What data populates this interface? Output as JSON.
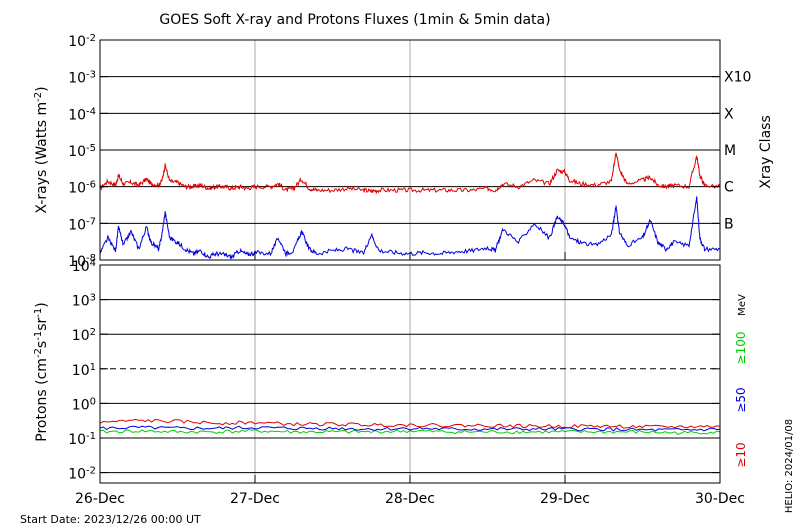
{
  "chart_data": {
    "type": "line",
    "title": "GOES Soft X-ray and Protons Fluxes   (1min & 5min data)",
    "x_ticks": [
      "26-Dec",
      "27-Dec",
      "28-Dec",
      "29-Dec",
      "30-Dec"
    ],
    "footer": {
      "start_date": "Start Date: 2023/12/26 00:00 UT",
      "credit": "HELIO: 2024/01/08"
    },
    "panels": [
      {
        "name": "xray",
        "ylabel": "X-rays (Watts m",
        "ylabel_sup": "-2",
        "ylabel_close": ")",
        "y_scale": "log",
        "ylim": [
          1e-08,
          0.01
        ],
        "y_tick_exponents": [
          "-8",
          "-7",
          "-6",
          "-5",
          "-4",
          "-3",
          "-2"
        ],
        "right_axis_title": "Xray Class",
        "classes": [
          {
            "label": "X10",
            "level": 0.001
          },
          {
            "label": "X",
            "level": 0.0001
          },
          {
            "label": "M",
            "level": 1e-05
          },
          {
            "label": "C",
            "level": 1e-06
          },
          {
            "label": "B",
            "level": 1e-07
          }
        ],
        "series": [
          {
            "color": "#dd0000",
            "x": [
              0,
              0.05,
              0.1,
              0.12,
              0.15,
              0.2,
              0.25,
              0.3,
              0.33,
              0.38,
              0.4,
              0.42,
              0.45,
              0.5,
              0.55,
              0.6,
              0.65,
              0.7,
              0.75,
              0.8,
              0.85,
              0.9,
              0.95,
              1.0,
              1.1,
              1.15,
              1.2,
              1.25,
              1.3,
              1.35,
              1.4,
              1.5,
              1.6,
              1.7,
              1.75,
              1.8,
              1.9,
              2.0,
              2.1,
              2.2,
              2.3,
              2.4,
              2.5,
              2.55,
              2.6,
              2.7,
              2.8,
              2.9,
              2.95,
              3.0,
              3.03,
              3.1,
              3.2,
              3.3,
              3.33,
              3.35,
              3.4,
              3.5,
              3.55,
              3.6,
              3.65,
              3.7,
              3.8,
              3.85,
              3.87,
              3.9,
              4.0
            ],
            "y": [
              9e-07,
              1.4e-06,
              1.1e-06,
              2e-06,
              1.2e-06,
              1.3e-06,
              1.1e-06,
              1.6e-06,
              1.2e-06,
              1.1e-06,
              1.5e-06,
              3.8e-06,
              1.4e-06,
              1.3e-06,
              1e-06,
              1e-06,
              1.1e-06,
              9e-07,
              1e-06,
              1e-06,
              9e-07,
              1e-06,
              9e-07,
              1e-06,
              1e-06,
              1.2e-06,
              8e-07,
              9e-07,
              1.6e-06,
              9e-07,
              8e-07,
              8e-07,
              9e-07,
              8e-07,
              7.5e-07,
              8e-07,
              8e-07,
              8e-07,
              8e-07,
              8e-07,
              8e-07,
              8e-07,
              9e-07,
              8e-07,
              1.2e-06,
              1e-06,
              1.5e-06,
              1.2e-06,
              2.8e-06,
              2.5e-06,
              1.5e-06,
              1.2e-06,
              1.1e-06,
              1.4e-06,
              9e-06,
              3e-06,
              1.2e-06,
              1.5e-06,
              1.8e-06,
              1.1e-06,
              1e-06,
              1.1e-06,
              1e-06,
              7e-06,
              2e-06,
              1.1e-06,
              1e-06
            ]
          },
          {
            "color": "#0000dd",
            "x": [
              0,
              0.05,
              0.1,
              0.12,
              0.15,
              0.2,
              0.25,
              0.3,
              0.33,
              0.38,
              0.4,
              0.42,
              0.45,
              0.5,
              0.55,
              0.6,
              0.65,
              0.7,
              0.75,
              0.8,
              0.85,
              0.9,
              0.95,
              1.0,
              1.1,
              1.15,
              1.2,
              1.25,
              1.3,
              1.35,
              1.4,
              1.5,
              1.6,
              1.7,
              1.75,
              1.8,
              1.9,
              2.0,
              2.1,
              2.2,
              2.3,
              2.4,
              2.5,
              2.55,
              2.6,
              2.7,
              2.8,
              2.9,
              2.95,
              3.0,
              3.03,
              3.1,
              3.2,
              3.3,
              3.33,
              3.35,
              3.4,
              3.5,
              3.55,
              3.6,
              3.65,
              3.7,
              3.8,
              3.85,
              3.87,
              3.9,
              4.0
            ],
            "y": [
              1.5e-08,
              4e-08,
              1.8e-08,
              8e-08,
              2.5e-08,
              6e-08,
              2e-08,
              8e-08,
              3e-08,
              2e-08,
              5e-08,
              2e-07,
              4e-08,
              3e-08,
              2e-08,
              1.5e-08,
              1.8e-08,
              1.2e-08,
              1.5e-08,
              1.4e-08,
              1.2e-08,
              1.8e-08,
              1.4e-08,
              1.6e-08,
              1.5e-08,
              4e-08,
              1.5e-08,
              1.8e-08,
              6e-08,
              2e-08,
              1.5e-08,
              1.8e-08,
              2e-08,
              1.5e-08,
              5e-08,
              1.8e-08,
              1.6e-08,
              1.5e-08,
              1.6e-08,
              1.5e-08,
              1.7e-08,
              1.8e-08,
              2.2e-08,
              1.8e-08,
              7e-08,
              3e-08,
              1e-07,
              4e-08,
              1.5e-07,
              9e-08,
              4e-08,
              3e-08,
              2.5e-08,
              5e-08,
              3e-07,
              6e-08,
              2.5e-08,
              4e-08,
              1.2e-07,
              3e-08,
              2e-08,
              3e-08,
              2.5e-08,
              5e-07,
              4e-08,
              2e-08,
              2e-08
            ]
          }
        ]
      },
      {
        "name": "protons",
        "ylabel": "Protons (cm",
        "ylabel_sup1": "-2",
        "ylabel_mid": "s",
        "ylabel_sup2": "-1",
        "ylabel_mid2": "sr",
        "ylabel_sup3": "-1",
        "ylabel_close": ")",
        "y_scale": "log",
        "ylim": [
          0.005,
          10000
        ],
        "y_tick_bases": [
          "10",
          "10",
          "10",
          "10",
          "10",
          "10",
          "10"
        ],
        "y_tick_exponents": [
          "-2",
          "-1",
          "0",
          "1",
          "2",
          "3",
          "4"
        ],
        "threshold_dashed": 10,
        "energy_unit": "MeV",
        "series": [
          {
            "name": "≥100",
            "color": "#00cc00",
            "x": [
              0,
              0.25,
              0.5,
              0.75,
              1.0,
              1.25,
              1.5,
              1.75,
              2.0,
              2.25,
              2.5,
              2.75,
              3.0,
              3.25,
              3.5,
              3.75,
              4.0
            ],
            "y": [
              0.15,
              0.16,
              0.15,
              0.15,
              0.16,
              0.15,
              0.15,
              0.15,
              0.16,
              0.15,
              0.15,
              0.15,
              0.15,
              0.15,
              0.15,
              0.14,
              0.15
            ]
          },
          {
            "name": "≥50",
            "color": "#0000dd",
            "x": [
              0,
              0.25,
              0.5,
              0.75,
              1.0,
              1.25,
              1.5,
              1.75,
              2.0,
              2.25,
              2.5,
              2.75,
              3.0,
              3.25,
              3.5,
              3.75,
              4.0
            ],
            "y": [
              0.19,
              0.2,
              0.19,
              0.19,
              0.2,
              0.19,
              0.19,
              0.18,
              0.19,
              0.18,
              0.18,
              0.18,
              0.18,
              0.18,
              0.17,
              0.17,
              0.18
            ]
          },
          {
            "name": "≥10",
            "color": "#dd0000",
            "x": [
              0,
              0.25,
              0.5,
              0.75,
              1.0,
              1.25,
              1.5,
              1.75,
              2.0,
              2.25,
              2.5,
              2.75,
              3.0,
              3.25,
              3.5,
              3.75,
              4.0
            ],
            "y": [
              0.28,
              0.32,
              0.3,
              0.27,
              0.28,
              0.25,
              0.25,
              0.24,
              0.24,
              0.23,
              0.23,
              0.22,
              0.22,
              0.22,
              0.21,
              0.21,
              0.22
            ]
          }
        ]
      }
    ]
  }
}
